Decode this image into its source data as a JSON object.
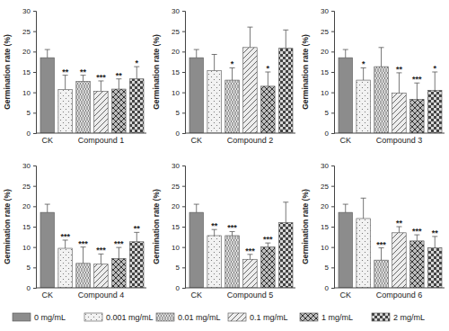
{
  "chart_data": [
    {
      "type": "bar",
      "ylabel": "Germination rate (%)",
      "categories": [
        "CK",
        null,
        null,
        "Compound 1",
        null,
        null
      ],
      "values": [
        18.5,
        10.7,
        12.7,
        10.3,
        10.8,
        13.3
      ],
      "errors": [
        2,
        3.5,
        1.5,
        2.5,
        2.5,
        3
      ],
      "significance": [
        null,
        "**",
        "**",
        "***",
        "**",
        "*"
      ],
      "colors": [
        "#8c8c8c",
        "#f2f2f2",
        "#e0e0e0",
        "#ededed",
        "#bdbdbd",
        "#d6d6d6"
      ],
      "ylim": [
        0,
        30
      ],
      "yticks": [
        0,
        5,
        10,
        15,
        20,
        25,
        30
      ]
    },
    {
      "type": "bar",
      "ylabel": "Germination rate (%)",
      "categories": [
        "CK",
        null,
        null,
        "Compound 2",
        null,
        null
      ],
      "values": [
        18.5,
        15.3,
        13,
        21,
        11.5,
        20.8
      ],
      "errors": [
        2,
        4,
        3,
        5,
        3.5,
        4.5
      ],
      "significance": [
        null,
        null,
        "*",
        null,
        "*",
        null
      ],
      "colors": [
        "#8c8c8c",
        "#f2f2f2",
        "#e0e0e0",
        "#ededed",
        "#bdbdbd",
        "#d6d6d6"
      ],
      "ylim": [
        0,
        30
      ],
      "yticks": [
        0,
        5,
        10,
        15,
        20,
        25,
        30
      ]
    },
    {
      "type": "bar",
      "ylabel": "Germination rate (%)",
      "categories": [
        "CK",
        null,
        null,
        "Compound 3",
        null,
        null
      ],
      "values": [
        18.5,
        13,
        16.3,
        9.8,
        8.3,
        10.5
      ],
      "errors": [
        2,
        3,
        4.7,
        5,
        4,
        4.5
      ],
      "significance": [
        null,
        "*",
        null,
        "**",
        "***",
        "*"
      ],
      "colors": [
        "#8c8c8c",
        "#f2f2f2",
        "#e0e0e0",
        "#ededed",
        "#bdbdbd",
        "#d6d6d6"
      ],
      "ylim": [
        0,
        30
      ],
      "yticks": [
        0,
        5,
        10,
        15,
        20,
        25,
        30
      ]
    },
    {
      "type": "bar",
      "ylabel": "Germination rate (%)",
      "categories": [
        "CK",
        null,
        null,
        "Compound 4",
        null,
        null
      ],
      "values": [
        18.5,
        9.7,
        6,
        5.8,
        7.2,
        11.3
      ],
      "errors": [
        2,
        2,
        4,
        2.5,
        2.7,
        2.3
      ],
      "significance": [
        null,
        "***",
        "***",
        "***",
        "***",
        "**"
      ],
      "colors": [
        "#8c8c8c",
        "#f2f2f2",
        "#e0e0e0",
        "#ededed",
        "#bdbdbd",
        "#d6d6d6"
      ],
      "ylim": [
        0,
        30
      ],
      "yticks": [
        0,
        5,
        10,
        15,
        20,
        25,
        30
      ]
    },
    {
      "type": "bar",
      "ylabel": "Germination rate (%)",
      "categories": [
        "CK",
        null,
        null,
        "Compound 5",
        null,
        null
      ],
      "values": [
        18.5,
        12.8,
        12.8,
        7,
        10,
        16
      ],
      "errors": [
        2,
        1.5,
        1,
        1.2,
        1,
        5
      ],
      "significance": [
        null,
        "**",
        "***",
        "***",
        "***",
        null
      ],
      "colors": [
        "#8c8c8c",
        "#f2f2f2",
        "#e0e0e0",
        "#ededed",
        "#bdbdbd",
        "#d6d6d6"
      ],
      "ylim": [
        0,
        30
      ],
      "yticks": [
        0,
        5,
        10,
        15,
        20,
        25,
        30
      ]
    },
    {
      "type": "bar",
      "ylabel": "Germination rate (%)",
      "categories": [
        "CK",
        null,
        null,
        "Compound 6",
        null,
        null
      ],
      "values": [
        18.5,
        17,
        6.8,
        13.5,
        11.5,
        9.8
      ],
      "errors": [
        2,
        5,
        3,
        1.5,
        1.5,
        2.8
      ],
      "significance": [
        null,
        null,
        "***",
        "**",
        "***",
        "**"
      ],
      "colors": [
        "#8c8c8c",
        "#f2f2f2",
        "#e0e0e0",
        "#ededed",
        "#bdbdbd",
        "#d6d6d6"
      ],
      "ylim": [
        0,
        30
      ],
      "yticks": [
        0,
        5,
        10,
        15,
        20,
        25,
        30
      ]
    }
  ],
  "legend_entries": [
    {
      "name": "0 mg/mL",
      "color": "#8c8c8c"
    },
    {
      "name": "0.001 mg/mL",
      "color": "#f2f2f2"
    },
    {
      "name": "0.01 mg/mL",
      "color": "#e0e0e0"
    },
    {
      "name": "0.1 mg/mL",
      "color": "#ededed"
    },
    {
      "name": "1 mg/mL",
      "color": "#bdbdbd"
    },
    {
      "name": "2 mg/mL",
      "color": "#d6d6d6"
    }
  ]
}
